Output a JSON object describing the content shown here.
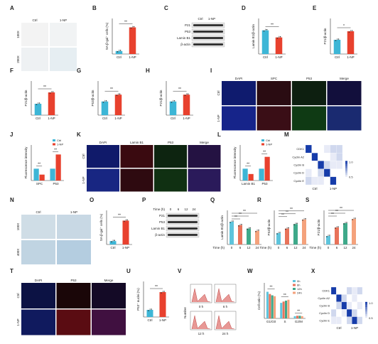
{
  "colors": {
    "ctrl": "#3db6d6",
    "treat": "#e8412e",
    "t0": "#5ec4dc",
    "t6": "#e8735a",
    "t12": "#3ea98a",
    "t24": "#f4a27c"
  },
  "panels": {
    "A": {
      "letter": "A",
      "cols": [
        "Ctrl",
        "1-NP"
      ],
      "rows": [
        "100X",
        "200X"
      ]
    },
    "B": {
      "letter": "B",
      "ylabel": "SA-β-gal⁺ cells (%)",
      "sig": "**"
    },
    "C": {
      "letter": "C",
      "cols": [
        "Ctrl",
        "1-NP"
      ],
      "bands": [
        "P21",
        "P53",
        "Lamin B1",
        "β-actin"
      ]
    },
    "D": {
      "letter": "D",
      "ylabel": "Lamin B1/β-actin",
      "sig": "**"
    },
    "E": {
      "letter": "E",
      "ylabel": "P21/β-actin",
      "sig": "*"
    },
    "F": {
      "letter": "F",
      "ylabel": "P21/β-actin",
      "sig": "**"
    },
    "G": {
      "letter": "G",
      "ylabel": "P53/β-actin",
      "sig": "**"
    },
    "H": {
      "letter": "H",
      "ylabel": "P21/β-actin",
      "sig": "**"
    },
    "I": {
      "letter": "I",
      "cols": [
        "DAPI",
        "SPC",
        "P53",
        "Merge"
      ],
      "rows": [
        "Ctrl",
        "1-NP"
      ]
    },
    "J": {
      "letter": "J",
      "ylabel": "Fluorescence intensity",
      "groups": [
        "SPC",
        "P53"
      ],
      "sig": "**"
    },
    "K": {
      "letter": "K",
      "cols": [
        "DAPI",
        "Lamin B1",
        "P53",
        "Merge"
      ],
      "rows": [
        "Ctrl",
        "1-NP"
      ]
    },
    "L": {
      "letter": "L",
      "ylabel": "Fluorescence intensity",
      "groups": [
        "Lamin B1",
        "P53"
      ],
      "sig": "**"
    },
    "M": {
      "letter": "M",
      "rows": [
        "CDK1",
        "Cyclin A2",
        "Cyclin B",
        "Cyclin D",
        "Cyclin E"
      ],
      "groups": [
        "Ctrl",
        "1-NP"
      ],
      "scale": [
        "1.0",
        "0.5"
      ]
    },
    "N": {
      "letter": "N",
      "cols": [
        "Ctrl",
        "1-NP"
      ],
      "rows": [
        "100X",
        "400X"
      ]
    },
    "O": {
      "letter": "O",
      "ylabel": "SA-β-gal⁺ cells (%)",
      "sig": "**"
    },
    "P": {
      "letter": "P",
      "time_label": "Time (h)",
      "times": [
        "0",
        "6",
        "12",
        "24"
      ],
      "bands": [
        "P21",
        "P53",
        "Lamin B1",
        "β-actin"
      ]
    },
    "Q": {
      "letter": "Q",
      "ylabel": "Lamin B1/β-actin",
      "xlabel": "Time (h)",
      "sig": "**"
    },
    "R": {
      "letter": "R",
      "ylabel": "P53/β-actin",
      "xlabel": "Time (h)",
      "sig": "**"
    },
    "S": {
      "letter": "S",
      "ylabel": "P21/β-actin",
      "xlabel": "Time (h)",
      "sig": "**"
    },
    "T": {
      "letter": "T",
      "cols": [
        "DAPI",
        "P53",
        "Merge"
      ],
      "rows": [
        "Ctrl",
        "1-NP"
      ]
    },
    "U": {
      "letter": "U",
      "ylabel": "P53⁺ nuclei (%)",
      "sig": "**"
    },
    "V": {
      "letter": "V",
      "ylabel": "Number",
      "subs": [
        "0 h",
        "6 h",
        "12 h",
        "24 h"
      ]
    },
    "W": {
      "letter": "W",
      "ylabel": "Cell ratio (%)",
      "legend": [
        "0h",
        "6h",
        "12h",
        "24h"
      ],
      "sig": "**"
    },
    "X": {
      "letter": "X",
      "rows": [
        "CDK1",
        "Cyclin A2",
        "Cyclin B",
        "Cyclin D",
        "Cyclin E"
      ],
      "groups": [
        "Ctrl",
        "1-NP"
      ],
      "scale": [
        "1.0",
        "0.5"
      ]
    }
  },
  "chart_data": [
    {
      "panel": "B",
      "type": "bar",
      "categories": [
        "Ctrl",
        "1-NP"
      ],
      "values": [
        1,
        9
      ],
      "ylim": [
        0,
        12
      ]
    },
    {
      "panel": "D",
      "type": "bar",
      "categories": [
        "Ctrl",
        "1-NP"
      ],
      "values": [
        1.0,
        0.7
      ],
      "ylim": [
        0,
        1.5
      ]
    },
    {
      "panel": "E",
      "type": "bar",
      "categories": [
        "Ctrl",
        "1-NP"
      ],
      "values": [
        1.0,
        1.6
      ],
      "ylim": [
        0,
        2.5
      ]
    },
    {
      "panel": "F",
      "type": "bar",
      "categories": [
        "Ctrl",
        "1-NP"
      ],
      "values": [
        1.0,
        2.0
      ],
      "ylim": [
        0,
        3
      ]
    },
    {
      "panel": "G",
      "type": "bar",
      "categories": [
        "Ctrl",
        "1-NP"
      ],
      "values": [
        1.0,
        1.5
      ],
      "ylim": [
        0,
        2.5
      ]
    },
    {
      "panel": "H",
      "type": "bar",
      "categories": [
        "Ctrl",
        "1-NP"
      ],
      "values": [
        1.0,
        1.5
      ],
      "ylim": [
        0,
        2.5
      ]
    },
    {
      "panel": "J",
      "type": "bar",
      "categories": [
        "SPC",
        "P53"
      ],
      "legend_position": "top-left",
      "series": [
        {
          "name": "Ctrl",
          "values": [
            1.0,
            1.0
          ]
        },
        {
          "name": "1-NP",
          "values": [
            0.5,
            2.2
          ]
        }
      ],
      "ylim": [
        0,
        3
      ]
    },
    {
      "panel": "L",
      "type": "bar",
      "categories": [
        "Lamin B1",
        "P53"
      ],
      "series": [
        {
          "name": "Ctrl",
          "values": [
            1.0,
            1.0
          ]
        },
        {
          "name": "1-NP",
          "values": [
            0.55,
            2.0
          ]
        }
      ],
      "ylim": [
        0,
        3
      ]
    },
    {
      "panel": "M",
      "type": "heatmap",
      "rows": [
        "CDK1",
        "Cyclin A2",
        "Cyclin B",
        "Cyclin D",
        "Cyclin E"
      ],
      "columns": 6,
      "values": [
        [
          1.0,
          0.4,
          0.5,
          0.55,
          0.6,
          0.6
        ],
        [
          0.4,
          1.0,
          0.45,
          0.5,
          0.55,
          0.6
        ],
        [
          0.5,
          0.45,
          1.0,
          0.6,
          0.55,
          0.55
        ],
        [
          0.55,
          0.5,
          0.6,
          1.0,
          0.5,
          0.5
        ],
        [
          0.6,
          0.55,
          0.55,
          0.5,
          1.0,
          0.45
        ]
      ],
      "range": [
        0.5,
        1.0
      ]
    },
    {
      "panel": "O",
      "type": "bar",
      "categories": [
        "Ctrl",
        "1-NP"
      ],
      "values": [
        1,
        7
      ],
      "ylim": [
        0,
        10
      ]
    },
    {
      "panel": "Q",
      "type": "bar",
      "categories": [
        "0",
        "6",
        "12",
        "24"
      ],
      "values": [
        1.0,
        0.85,
        0.7,
        0.6
      ],
      "ylim": [
        0,
        1.5
      ]
    },
    {
      "panel": "R",
      "type": "bar",
      "categories": [
        "0",
        "6",
        "12",
        "24"
      ],
      "values": [
        1.0,
        1.4,
        1.8,
        2.2
      ],
      "ylim": [
        0,
        3
      ]
    },
    {
      "panel": "S",
      "type": "bar",
      "categories": [
        "0",
        "6",
        "12",
        "24"
      ],
      "values": [
        1.0,
        2.0,
        2.5,
        3.0
      ],
      "ylim": [
        0,
        4
      ]
    },
    {
      "panel": "U",
      "type": "bar",
      "categories": [
        "Ctrl",
        "1-NP"
      ],
      "values": [
        20,
        70
      ],
      "ylim": [
        0,
        100
      ]
    },
    {
      "panel": "W",
      "type": "bar",
      "categories": [
        "G1/G0",
        "S",
        "G2/M"
      ],
      "series": [
        {
          "name": "0h",
          "values": [
            60,
            35,
            5
          ]
        },
        {
          "name": "6h",
          "values": [
            55,
            38,
            6
          ]
        },
        {
          "name": "12h",
          "values": [
            52,
            40,
            6
          ]
        },
        {
          "name": "24h",
          "values": [
            50,
            42,
            5
          ]
        }
      ],
      "ylim": [
        0,
        80
      ],
      "legend_position": "top-right"
    },
    {
      "panel": "X",
      "type": "heatmap",
      "rows": [
        "CDK1",
        "Cyclin A2",
        "Cyclin B",
        "Cyclin D",
        "Cyclin E"
      ],
      "columns": 6,
      "values": [
        [
          1.0,
          0.5,
          0.5,
          0.6,
          0.55,
          0.6
        ],
        [
          0.5,
          1.0,
          0.6,
          0.5,
          0.55,
          0.5
        ],
        [
          0.5,
          0.6,
          1.0,
          0.55,
          0.5,
          0.55
        ],
        [
          0.6,
          0.5,
          0.55,
          1.0,
          0.6,
          0.5
        ],
        [
          0.55,
          0.55,
          0.5,
          0.6,
          1.0,
          0.6
        ]
      ],
      "range": [
        0.5,
        1.0
      ]
    }
  ]
}
